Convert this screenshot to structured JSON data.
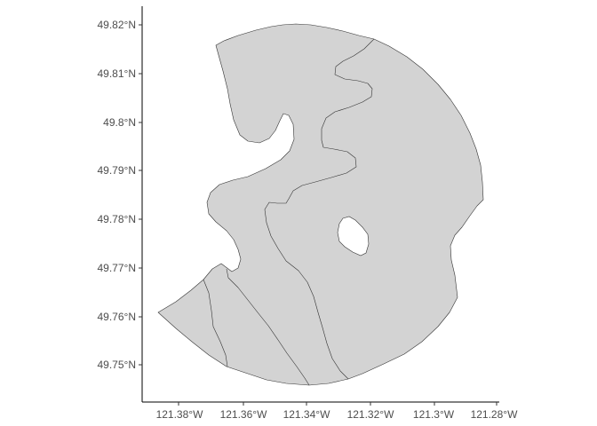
{
  "map": {
    "type": "polygon-map",
    "x_axis": {
      "ticks": [
        "121.38°W",
        "121.36°W",
        "121.34°W",
        "121.32°W",
        "121.3°W",
        "121.28°W"
      ]
    },
    "y_axis": {
      "ticks": [
        "49.82°N",
        "49.81°N",
        "49.8°N",
        "49.79°N",
        "49.78°N",
        "49.77°N",
        "49.76°N",
        "49.75°N"
      ]
    },
    "fill_color": "#d3d3d3",
    "stroke_color": "#333333",
    "background": "#ffffff"
  }
}
